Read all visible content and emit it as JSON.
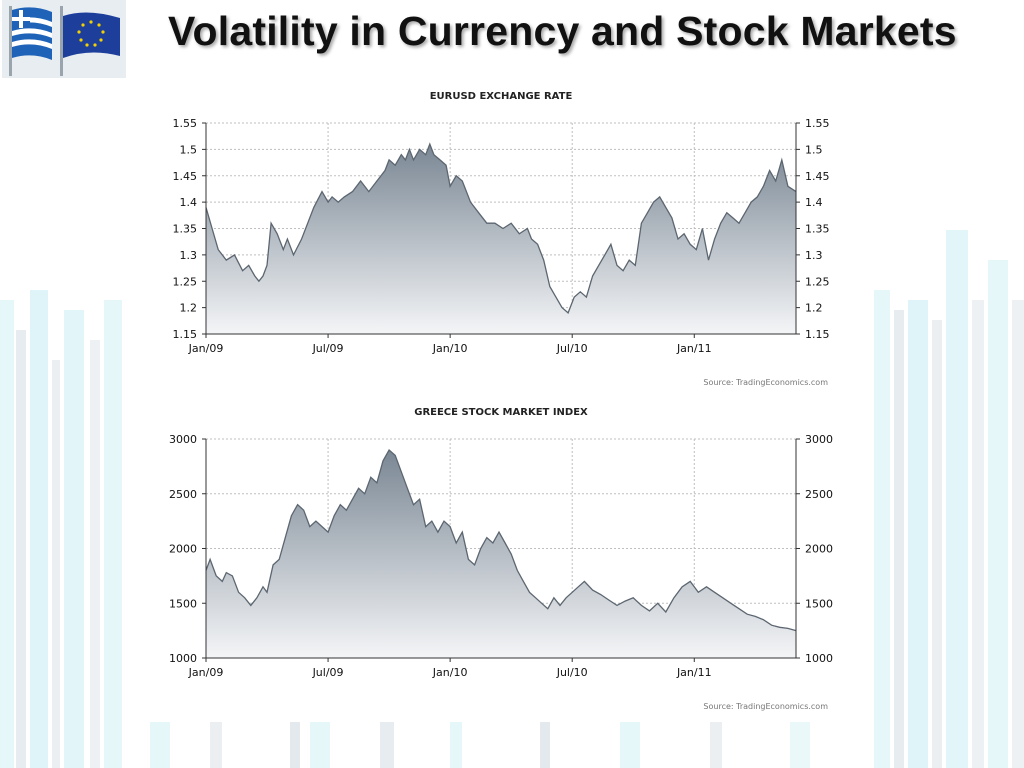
{
  "slide": {
    "title": "Volatility in Currency and Stock Markets"
  },
  "colors": {
    "area_top": "#7a8794",
    "area_bottom": "#f4f5f7",
    "line": "#5c6670",
    "grid": "#bfbfbf",
    "axis": "#333333",
    "stripe_cyan": "#d6f1f6",
    "stripe_gray": "#dde4ea"
  },
  "icons": {
    "flags": "greece-eu-flags-icon"
  },
  "chart_data": [
    {
      "type": "area",
      "title": "EURUSD EXCHANGE RATE",
      "source": "Source: TradingEconomics.com",
      "x_ticks": [
        {
          "label": "Jan/09",
          "month": 0
        },
        {
          "label": "Jul/09",
          "month": 6
        },
        {
          "label": "Jan/10",
          "month": 12
        },
        {
          "label": "Jul/10",
          "month": 18
        },
        {
          "label": "Jan/11",
          "month": 24
        }
      ],
      "x_range": [
        0,
        29
      ],
      "ylim": [
        1.15,
        1.55
      ],
      "y_ticks": [
        "1.15",
        "1.2",
        "1.25",
        "1.3",
        "1.35",
        "1.4",
        "1.45",
        "1.5",
        "1.55"
      ],
      "y_tick_values": [
        1.15,
        1.2,
        1.25,
        1.3,
        1.35,
        1.4,
        1.45,
        1.5,
        1.55
      ],
      "grid": true,
      "series": [
        {
          "x": [
            0,
            0.3,
            0.6,
            1,
            1.4,
            1.8,
            2.1,
            2.4,
            2.6,
            2.8,
            3.0,
            3.2,
            3.5,
            3.8,
            4.0,
            4.3,
            4.7,
            5.0,
            5.3,
            5.7,
            6.0,
            6.2,
            6.5,
            6.8,
            7.2,
            7.6,
            8.0,
            8.4,
            8.8,
            9.0,
            9.3,
            9.6,
            9.8,
            10.0,
            10.2,
            10.5,
            10.8,
            11.0,
            11.2,
            11.5,
            11.8,
            12.0,
            12.3,
            12.6,
            13.0,
            13.4,
            13.8,
            14.2,
            14.6,
            15.0,
            15.4,
            15.8,
            16.0,
            16.3,
            16.6,
            16.9,
            17.2,
            17.5,
            17.8,
            18.1,
            18.4,
            18.7,
            19.0,
            19.3,
            19.6,
            19.9,
            20.2,
            20.5,
            20.8,
            21.1,
            21.4,
            21.7,
            22.0,
            22.3,
            22.6,
            22.9,
            23.2,
            23.5,
            23.8,
            24.1,
            24.4,
            24.7,
            25.0,
            25.3,
            25.6,
            25.9,
            26.2,
            26.5,
            26.8,
            27.1,
            27.4,
            27.7,
            28.0,
            28.3,
            28.6,
            29.0
          ],
          "y": [
            1.39,
            1.35,
            1.31,
            1.29,
            1.3,
            1.27,
            1.28,
            1.26,
            1.25,
            1.26,
            1.28,
            1.36,
            1.34,
            1.31,
            1.33,
            1.3,
            1.33,
            1.36,
            1.39,
            1.42,
            1.4,
            1.41,
            1.4,
            1.41,
            1.42,
            1.44,
            1.42,
            1.44,
            1.46,
            1.48,
            1.47,
            1.49,
            1.48,
            1.5,
            1.48,
            1.5,
            1.49,
            1.51,
            1.49,
            1.48,
            1.47,
            1.43,
            1.45,
            1.44,
            1.4,
            1.38,
            1.36,
            1.36,
            1.35,
            1.36,
            1.34,
            1.35,
            1.33,
            1.32,
            1.29,
            1.24,
            1.22,
            1.2,
            1.19,
            1.22,
            1.23,
            1.22,
            1.26,
            1.28,
            1.3,
            1.32,
            1.28,
            1.27,
            1.29,
            1.28,
            1.36,
            1.38,
            1.4,
            1.41,
            1.39,
            1.37,
            1.33,
            1.34,
            1.32,
            1.31,
            1.35,
            1.29,
            1.33,
            1.36,
            1.38,
            1.37,
            1.36,
            1.38,
            1.4,
            1.41,
            1.43,
            1.46,
            1.44,
            1.48,
            1.43,
            1.42
          ]
        }
      ]
    },
    {
      "type": "area",
      "title": "GREECE STOCK MARKET INDEX",
      "source": "Source: TradingEconomics.com",
      "x_ticks": [
        {
          "label": "Jan/09",
          "month": 0
        },
        {
          "label": "Jul/09",
          "month": 6
        },
        {
          "label": "Jan/10",
          "month": 12
        },
        {
          "label": "Jul/10",
          "month": 18
        },
        {
          "label": "Jan/11",
          "month": 24
        }
      ],
      "x_range": [
        0,
        29
      ],
      "ylim": [
        1000,
        3000
      ],
      "y_ticks": [
        "1000",
        "1500",
        "2000",
        "2500",
        "3000"
      ],
      "y_tick_values": [
        1000,
        1500,
        2000,
        2500,
        3000
      ],
      "grid": true,
      "series": [
        {
          "x": [
            0,
            0.2,
            0.5,
            0.8,
            1.0,
            1.3,
            1.6,
            1.9,
            2.2,
            2.5,
            2.8,
            3.0,
            3.3,
            3.6,
            3.9,
            4.2,
            4.5,
            4.8,
            5.1,
            5.4,
            5.7,
            6.0,
            6.3,
            6.6,
            6.9,
            7.2,
            7.5,
            7.8,
            8.1,
            8.4,
            8.7,
            9.0,
            9.3,
            9.6,
            9.9,
            10.2,
            10.5,
            10.8,
            11.1,
            11.4,
            11.7,
            12.0,
            12.3,
            12.6,
            12.9,
            13.2,
            13.5,
            13.8,
            14.1,
            14.4,
            14.7,
            15.0,
            15.3,
            15.6,
            15.9,
            16.2,
            16.5,
            16.8,
            17.1,
            17.4,
            17.7,
            18.0,
            18.3,
            18.6,
            19.0,
            19.4,
            19.8,
            20.2,
            20.6,
            21.0,
            21.4,
            21.8,
            22.2,
            22.6,
            23.0,
            23.4,
            23.8,
            24.2,
            24.6,
            25.0,
            25.4,
            25.8,
            26.2,
            26.6,
            27.0,
            27.4,
            27.8,
            28.2,
            28.6,
            29.0
          ],
          "y": [
            1800,
            1900,
            1750,
            1700,
            1780,
            1750,
            1600,
            1550,
            1480,
            1550,
            1650,
            1600,
            1850,
            1900,
            2100,
            2300,
            2400,
            2350,
            2200,
            2250,
            2200,
            2150,
            2300,
            2400,
            2350,
            2450,
            2550,
            2500,
            2650,
            2600,
            2800,
            2900,
            2850,
            2700,
            2550,
            2400,
            2450,
            2200,
            2250,
            2150,
            2250,
            2200,
            2050,
            2150,
            1900,
            1850,
            2000,
            2100,
            2050,
            2150,
            2050,
            1950,
            1800,
            1700,
            1600,
            1550,
            1500,
            1450,
            1550,
            1480,
            1550,
            1600,
            1650,
            1700,
            1620,
            1580,
            1530,
            1480,
            1520,
            1550,
            1480,
            1430,
            1500,
            1420,
            1550,
            1650,
            1700,
            1600,
            1650,
            1600,
            1550,
            1500,
            1450,
            1400,
            1380,
            1350,
            1300,
            1280,
            1270,
            1250
          ]
        }
      ]
    }
  ]
}
